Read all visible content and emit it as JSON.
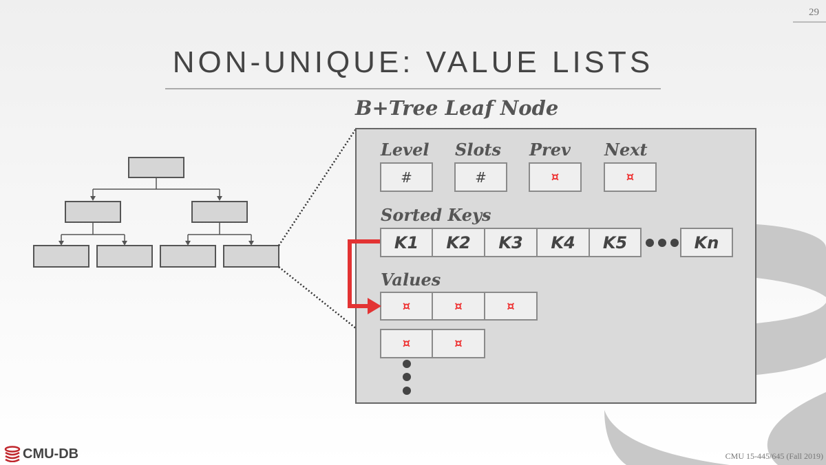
{
  "slide": {
    "page_number": "29",
    "title": "NON-UNIQUE: VALUE LISTS",
    "footer": "CMU 15-445/645 (Fall 2019)",
    "logo_text": "CMU-DB"
  },
  "leaf_node": {
    "heading": "B+Tree Leaf Node",
    "header_fields": [
      {
        "label": "Level",
        "value": "#"
      },
      {
        "label": "Slots",
        "value": "#"
      },
      {
        "label": "Prev",
        "value": "¤"
      },
      {
        "label": "Next",
        "value": "¤"
      }
    ],
    "sorted_keys_label": "Sorted Keys",
    "keys": [
      "K1",
      "K2",
      "K3",
      "K4",
      "K5"
    ],
    "last_key": "Kn",
    "values_label": "Values",
    "value_lists": [
      [
        "¤",
        "¤",
        "¤"
      ],
      [
        "¤",
        "¤"
      ]
    ]
  },
  "colors": {
    "pointer": "#e33333",
    "panel": "#dadada",
    "cell": "#efefef"
  }
}
